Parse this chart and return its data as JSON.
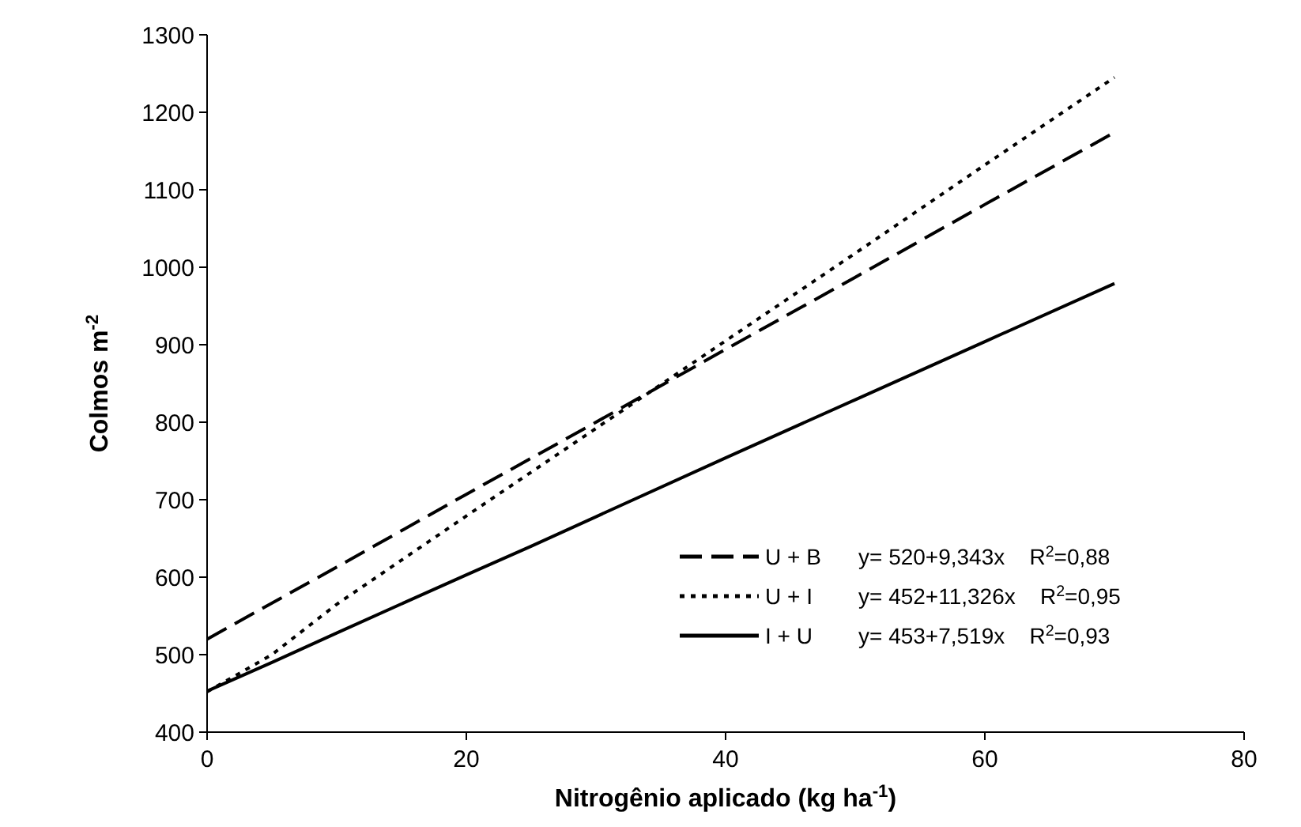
{
  "chart_data": {
    "type": "line",
    "xlabel": "Nitrogênio aplicado (kg ha$^{-1}$)",
    "ylabel": "Colmos m$^{-2}$",
    "xlim": [
      0,
      80
    ],
    "xticks": [
      0,
      20,
      40,
      60,
      80
    ],
    "ylim": [
      400,
      1300
    ],
    "yticks": [
      400,
      500,
      600,
      700,
      800,
      900,
      1000,
      1100,
      1200,
      1300
    ],
    "grid": false,
    "legend": "bottom right",
    "series": [
      {
        "name": "U + B",
        "color": "#000000",
        "line_style": "dashed",
        "x": [
          0,
          10,
          20,
          30,
          40,
          50,
          60,
          70
        ],
        "values": [
          520,
          613,
          707,
          800,
          894,
          987,
          1081,
          1174
        ]
      },
      {
        "name": "U + I",
        "color": "#000000",
        "line_style": "dotted",
        "x": [
          0,
          5,
          10,
          20,
          30,
          40,
          50,
          60,
          70
        ],
        "values": [
          452,
          500,
          565,
          679,
          792,
          905,
          1018,
          1132,
          1245
        ]
      },
      {
        "name": "I + U",
        "color": "#000000",
        "line_style": "solid",
        "x": [
          0,
          5,
          10,
          20,
          25,
          30,
          40,
          50,
          60,
          70
        ],
        "values": [
          453,
          490,
          528,
          603,
          640,
          678,
          754,
          829,
          904,
          979
        ]
      }
    ],
    "annotations": [
      "y= 520+9,343x    R$^{2}$=0,88",
      "y= 452+11,326x    R$^{2}$=0,95",
      "y= 453+7,519x    R$^{2}$=0,93"
    ]
  }
}
